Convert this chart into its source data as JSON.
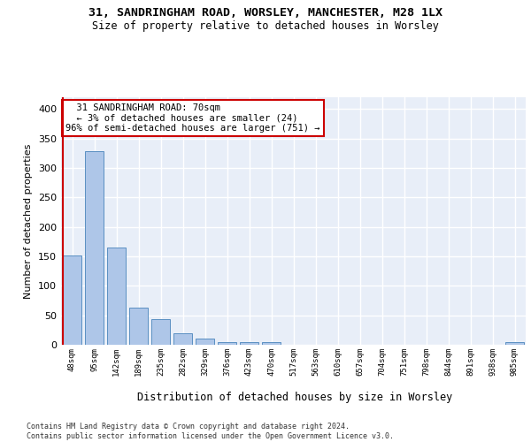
{
  "title_line1": "31, SANDRINGHAM ROAD, WORSLEY, MANCHESTER, M28 1LX",
  "title_line2": "Size of property relative to detached houses in Worsley",
  "xlabel": "Distribution of detached houses by size in Worsley",
  "ylabel": "Number of detached properties",
  "footnote": "Contains HM Land Registry data © Crown copyright and database right 2024.\nContains public sector information licensed under the Open Government Licence v3.0.",
  "annotation_line1": "31 SANDRINGHAM ROAD: 70sqm",
  "annotation_line2": "← 3% of detached houses are smaller (24)",
  "annotation_line3": "96% of semi-detached houses are larger (751) →",
  "bar_color": "#aec6e8",
  "bar_edge_color": "#5a8fc2",
  "vline_color": "#cc0000",
  "annotation_box_edgecolor": "#cc0000",
  "bg_color": "#e8eef8",
  "grid_color": "#ffffff",
  "categories": [
    "48sqm",
    "95sqm",
    "142sqm",
    "189sqm",
    "235sqm",
    "282sqm",
    "329sqm",
    "376sqm",
    "423sqm",
    "470sqm",
    "517sqm",
    "563sqm",
    "610sqm",
    "657sqm",
    "704sqm",
    "751sqm",
    "798sqm",
    "844sqm",
    "891sqm",
    "938sqm",
    "985sqm"
  ],
  "values": [
    152,
    328,
    165,
    63,
    44,
    20,
    10,
    5,
    5,
    5,
    0,
    0,
    0,
    0,
    0,
    0,
    0,
    0,
    0,
    0,
    5
  ],
  "ylim": [
    0,
    420
  ],
  "yticks": [
    0,
    50,
    100,
    150,
    200,
    250,
    300,
    350,
    400
  ],
  "vline_x_index": 0
}
